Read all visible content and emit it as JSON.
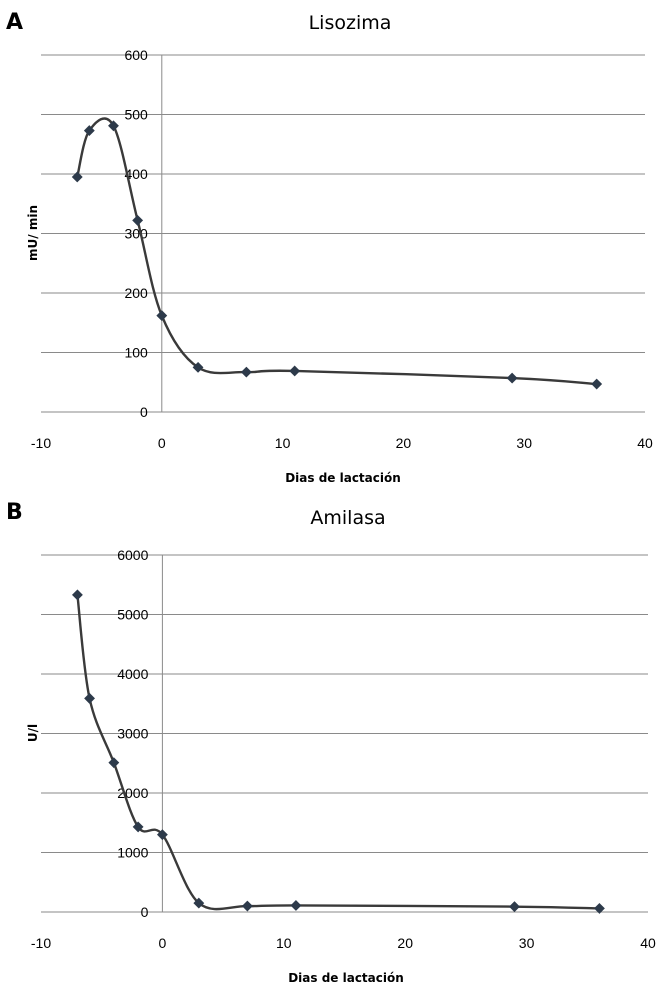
{
  "chart_data": [
    {
      "type": "line",
      "panel": "A",
      "title": "Lisozima",
      "xlabel": "Dias de lactación",
      "ylabel": "mU/ min",
      "xlim": [
        -10,
        40
      ],
      "ylim": [
        0,
        600
      ],
      "xticks": [
        -10,
        0,
        10,
        20,
        30,
        40
      ],
      "yticks": [
        0,
        100,
        200,
        300,
        400,
        500,
        600
      ],
      "grid": "horizontal",
      "series": [
        {
          "x": [
            -7,
            -6,
            -4,
            -2,
            0,
            3,
            7,
            11,
            29,
            36
          ],
          "y": [
            395,
            473,
            481,
            322,
            162,
            75,
            67,
            69,
            57,
            47
          ]
        }
      ]
    },
    {
      "type": "line",
      "panel": "B",
      "title": "Amilasa",
      "xlabel": "Dias de lactación",
      "ylabel": "U/l",
      "xlim": [
        -10,
        40
      ],
      "ylim": [
        0,
        6000
      ],
      "xticks": [
        -10,
        0,
        10,
        20,
        30,
        40
      ],
      "yticks": [
        0,
        1000,
        2000,
        3000,
        4000,
        5000,
        6000
      ],
      "grid": "horizontal",
      "series": [
        {
          "x": [
            -7,
            -6,
            -4,
            -2,
            0,
            3,
            7,
            11,
            29,
            36
          ],
          "y": [
            5330,
            3590,
            2510,
            1430,
            1300,
            150,
            100,
            110,
            90,
            60
          ]
        }
      ]
    }
  ],
  "colors": {
    "line": "#3a3a3a",
    "marker": "#2d3a4a",
    "grid": "#8a8a8a"
  }
}
